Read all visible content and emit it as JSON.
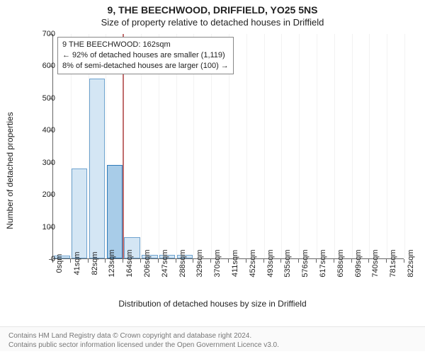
{
  "title_main": "9, THE BEECHWOOD, DRIFFIELD, YO25 5NS",
  "title_sub": "Size of property relative to detached houses in Driffield",
  "ylabel": "Number of detached properties",
  "xaxis_label": "Distribution of detached houses by size in Driffield",
  "chart": {
    "type": "histogram",
    "ylim": [
      0,
      700
    ],
    "ytick_step": 100,
    "background_color": "#ffffff",
    "grid_color": "#f2f2f2",
    "axis_color": "#666666",
    "bar_fill": "#d4e6f4",
    "bar_stroke": "#6ea3cf",
    "bar_width_ratio": 0.9,
    "highlight_bar_fill": "#a8cce8",
    "highlight_bar_stroke": "#2e7ab8",
    "xtick_labels": [
      "0sqm",
      "41sqm",
      "82sqm",
      "123sqm",
      "164sqm",
      "206sqm",
      "247sqm",
      "288sqm",
      "329sqm",
      "370sqm",
      "411sqm",
      "452sqm",
      "493sqm",
      "535sqm",
      "576sqm",
      "617sqm",
      "658sqm",
      "699sqm",
      "740sqm",
      "781sqm",
      "822sqm"
    ],
    "values": [
      8,
      280,
      560,
      290,
      65,
      12,
      10,
      10,
      0,
      0,
      0,
      0,
      0,
      0,
      0,
      0,
      0,
      0,
      0,
      0
    ],
    "highlight_index": 3,
    "marker_position_sqm": 162,
    "xlim_sqm": [
      0,
      822
    ],
    "marker_color": "#c06d6d"
  },
  "infobox": {
    "line1": "9 THE BEECHWOOD: 162sqm",
    "line2": "← 92% of detached houses are smaller (1,119)",
    "line3": "8% of semi-detached houses are larger (100) →"
  },
  "footer": {
    "line1": "Contains HM Land Registry data © Crown copyright and database right 2024.",
    "line2": "Contains public sector information licensed under the Open Government Licence v3.0."
  }
}
